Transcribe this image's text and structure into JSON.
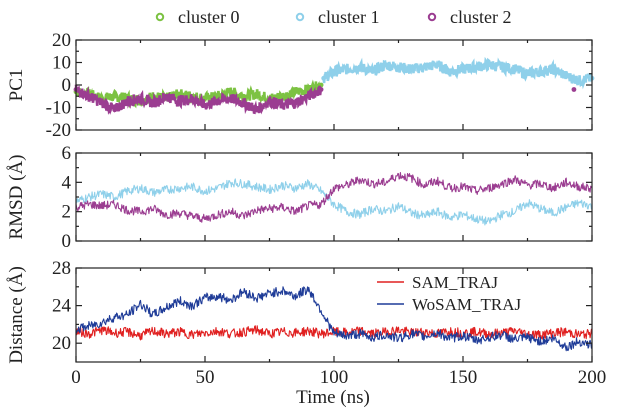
{
  "chart_data": [
    {
      "type": "scatter",
      "ylabel": "PC1",
      "xlim": [
        0,
        200
      ],
      "ylim": [
        -20,
        20
      ],
      "yticks": [
        "20",
        "10",
        "0",
        "-10",
        "-20"
      ],
      "legend_position": "top",
      "series": [
        {
          "name": "cluster 0",
          "color": "#7cc242",
          "x": [
            0,
            5,
            10,
            15,
            20,
            25,
            30,
            35,
            40,
            45,
            50,
            55,
            60,
            65,
            70,
            75,
            80,
            85,
            90,
            95
          ],
          "y": [
            -3,
            -4,
            -6,
            -5,
            -6,
            -7,
            -5,
            -6,
            -4,
            -5,
            -6,
            -5,
            -3,
            -5,
            -4,
            -6,
            -5,
            -3,
            -2,
            0
          ]
        },
        {
          "name": "cluster 1",
          "color": "#8fd0ea",
          "x": [
            96,
            100,
            105,
            110,
            115,
            120,
            125,
            130,
            135,
            140,
            145,
            150,
            155,
            160,
            165,
            170,
            175,
            180,
            185,
            190,
            195,
            200
          ],
          "y": [
            3,
            6,
            7,
            8,
            6,
            9,
            8,
            7,
            8,
            9,
            6,
            7,
            8,
            9,
            8,
            7,
            5,
            6,
            7,
            4,
            2,
            3
          ]
        },
        {
          "name": "cluster 2",
          "color": "#9b3d91",
          "x": [
            0,
            5,
            10,
            15,
            20,
            25,
            30,
            35,
            40,
            45,
            50,
            55,
            60,
            65,
            70,
            75,
            80,
            85,
            90,
            95,
            193
          ],
          "y": [
            -2,
            -5,
            -8,
            -11,
            -7,
            -6,
            -8,
            -5,
            -7,
            -6,
            -9,
            -7,
            -6,
            -8,
            -11,
            -7,
            -9,
            -8,
            -5,
            -2,
            -2
          ]
        }
      ]
    },
    {
      "type": "line",
      "ylabel": "RMSD (Å)",
      "xlim": [
        0,
        200
      ],
      "ylim": [
        0,
        6
      ],
      "yticks": [
        "6",
        "4",
        "2",
        "0"
      ],
      "series": [
        {
          "color": "#8fd0ea",
          "x": [
            0,
            5,
            10,
            15,
            20,
            25,
            30,
            35,
            40,
            45,
            50,
            55,
            60,
            65,
            70,
            75,
            80,
            85,
            90,
            95,
            100,
            105,
            110,
            115,
            120,
            125,
            130,
            135,
            140,
            145,
            150,
            155,
            160,
            165,
            170,
            175,
            180,
            185,
            190,
            195,
            200
          ],
          "y": [
            2.7,
            3.0,
            3.2,
            3.0,
            3.4,
            3.6,
            3.3,
            3.5,
            3.6,
            3.7,
            3.4,
            3.6,
            4.0,
            3.9,
            3.7,
            3.5,
            3.8,
            3.6,
            3.9,
            3.4,
            2.5,
            2.0,
            1.8,
            2.2,
            2.0,
            2.4,
            1.9,
            1.7,
            2.0,
            1.6,
            1.8,
            1.5,
            1.3,
            1.8,
            2.0,
            2.6,
            2.2,
            1.9,
            2.3,
            2.6,
            2.4
          ]
        },
        {
          "color": "#9b3d91",
          "x": [
            0,
            5,
            10,
            15,
            20,
            25,
            30,
            35,
            40,
            45,
            50,
            55,
            60,
            65,
            70,
            75,
            80,
            85,
            90,
            95,
            100,
            105,
            110,
            115,
            120,
            125,
            130,
            135,
            140,
            145,
            150,
            155,
            160,
            165,
            170,
            175,
            180,
            185,
            190,
            195,
            200
          ],
          "y": [
            2.3,
            2.5,
            2.4,
            2.5,
            2.1,
            2.0,
            2.2,
            1.8,
            1.9,
            1.7,
            1.5,
            1.8,
            2.0,
            1.7,
            2.1,
            2.2,
            2.3,
            2.0,
            2.4,
            2.5,
            3.6,
            3.8,
            4.2,
            3.9,
            4.0,
            4.5,
            4.3,
            3.8,
            4.1,
            3.6,
            3.7,
            3.4,
            3.6,
            3.9,
            4.2,
            3.8,
            3.9,
            3.6,
            4.0,
            3.7,
            3.6
          ]
        }
      ]
    },
    {
      "type": "line",
      "xlabel": "Time (ns)",
      "ylabel": "Distance (Å)",
      "xlim": [
        0,
        200
      ],
      "ylim": [
        18,
        28
      ],
      "xticks": [
        "0",
        "50",
        "100",
        "150",
        "200"
      ],
      "yticks": [
        "28",
        "24",
        "20"
      ],
      "legend_position": "top-right",
      "series": [
        {
          "name": "SAM_TRAJ",
          "color": "#e02020",
          "x": [
            0,
            5,
            10,
            15,
            20,
            25,
            30,
            35,
            40,
            45,
            50,
            55,
            60,
            65,
            70,
            75,
            80,
            85,
            90,
            95,
            100,
            105,
            110,
            115,
            120,
            125,
            130,
            135,
            140,
            145,
            150,
            155,
            160,
            165,
            170,
            175,
            180,
            185,
            190,
            195,
            200
          ],
          "y": [
            21.3,
            21.0,
            21.4,
            21.1,
            21.2,
            20.8,
            21.3,
            21.0,
            21.2,
            20.9,
            21.1,
            21.3,
            21.0,
            21.2,
            21.4,
            21.0,
            21.2,
            21.1,
            21.3,
            21.0,
            21.2,
            21.1,
            21.3,
            21.0,
            21.2,
            21.4,
            21.1,
            21.2,
            21.0,
            21.3,
            21.1,
            21.2,
            21.0,
            21.1,
            21.3,
            21.0,
            20.9,
            21.1,
            21.2,
            20.9,
            21.0
          ]
        },
        {
          "name": "WoSAM_TRAJ",
          "color": "#1f3c98",
          "x": [
            0,
            5,
            10,
            15,
            20,
            25,
            30,
            35,
            40,
            45,
            50,
            55,
            60,
            65,
            70,
            75,
            80,
            85,
            90,
            95,
            100,
            105,
            110,
            115,
            120,
            125,
            130,
            135,
            140,
            145,
            150,
            155,
            160,
            165,
            170,
            175,
            180,
            185,
            190,
            195,
            200
          ],
          "y": [
            21.5,
            21.8,
            22.2,
            22.8,
            23.0,
            24.2,
            23.0,
            23.8,
            24.5,
            24.0,
            24.8,
            25.0,
            24.6,
            25.5,
            24.8,
            25.3,
            25.6,
            25.0,
            25.8,
            23.5,
            21.0,
            20.8,
            21.0,
            20.6,
            20.9,
            20.5,
            21.0,
            20.7,
            21.1,
            20.5,
            20.8,
            20.3,
            20.6,
            20.9,
            20.4,
            20.6,
            20.2,
            20.5,
            19.6,
            20.2,
            19.8
          ]
        }
      ]
    }
  ]
}
